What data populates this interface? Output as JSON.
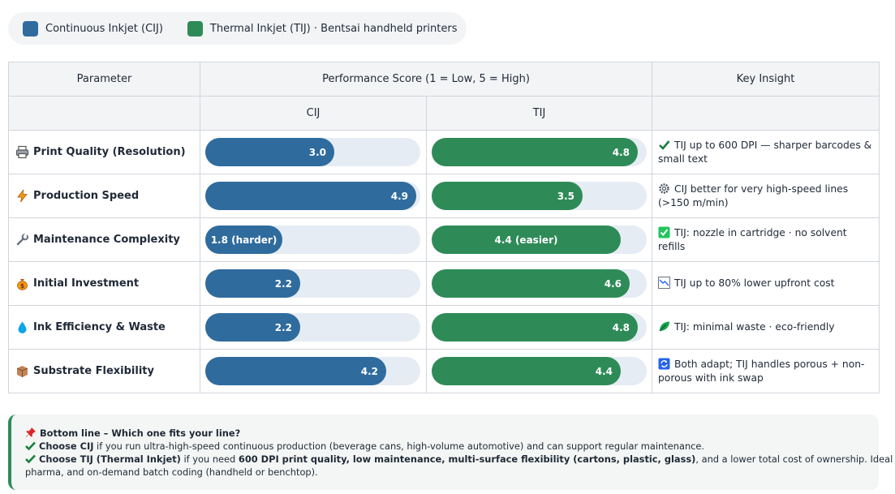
{
  "legend": {
    "cij": {
      "label": "Continuous Inkjet (CIJ)",
      "color": "#2f6b9d"
    },
    "tij": {
      "label": "Thermal Inkjet (TIJ) · Bentsai handheld printers",
      "color": "#2e8b57"
    }
  },
  "table": {
    "headers": {
      "parameter": "Parameter",
      "score": "Performance Score (1 = Low, 5 = High)",
      "insight": "Key Insight",
      "cij": "CIJ",
      "tij": "TIJ"
    },
    "max_score": 5,
    "rows": [
      {
        "icon": "printer-icon",
        "label": "Print Quality (Resolution)",
        "cij": 3.0,
        "cij_text": "3.0",
        "tij": 4.8,
        "tij_text": "4.8",
        "insight_icon": "check-mark-icon",
        "insight": "TIJ up to 600 DPI — sharper barcodes & small text"
      },
      {
        "icon": "lightning-icon",
        "label": "Production Speed",
        "cij": 4.9,
        "cij_text": "4.9",
        "tij": 3.5,
        "tij_text": "3.5",
        "insight_icon": "gear-icon",
        "insight": "CIJ better for very high-speed lines (>150 m/min)"
      },
      {
        "icon": "wrench-icon",
        "label": "Maintenance Complexity",
        "cij": 1.8,
        "cij_text": "1.8 (harder)",
        "tij": 4.4,
        "tij_text": "4.4 (easier)",
        "insight_icon": "check-box-icon",
        "insight": "TIJ: nozzle in cartridge · no solvent refills"
      },
      {
        "icon": "money-bag-icon",
        "label": "Initial Investment",
        "cij": 2.2,
        "cij_text": "2.2",
        "tij": 4.6,
        "tij_text": "4.6",
        "insight_icon": "chart-down-icon",
        "insight": "TIJ up to 80% lower upfront cost"
      },
      {
        "icon": "droplet-icon",
        "label": "Ink Efficiency & Waste",
        "cij": 2.2,
        "cij_text": "2.2",
        "tij": 4.8,
        "tij_text": "4.8",
        "insight_icon": "leaf-icon",
        "insight": "TIJ: minimal waste · eco-friendly"
      },
      {
        "icon": "package-icon",
        "label": "Substrate Flexibility",
        "cij": 4.2,
        "cij_text": "4.2",
        "tij": 4.4,
        "tij_text": "4.4",
        "insight_icon": "refresh-icon",
        "insight": "Both adapt; TIJ handles porous + non-porous with ink swap"
      }
    ]
  },
  "bottom": {
    "heading": "Bottom line – Which one fits your line?",
    "cij_bold": "Choose CIJ",
    "cij_text": " if you run ultra-high-speed continuous production (beverage cans, high-volume automotive) and can support regular maintenance.",
    "tij_bold": "Choose TIJ (Thermal Inkjet)",
    "tij_text1": " if you need ",
    "tij_bold2": "600 DPI print quality, low maintenance, multi-surface flexibility (cartons, plastic, glass)",
    "tij_text2": ", and a lower total cost of ownership. Ideal for food,",
    "tij_text3": "pharma, and on-demand batch coding (handheld or benchtop)."
  }
}
